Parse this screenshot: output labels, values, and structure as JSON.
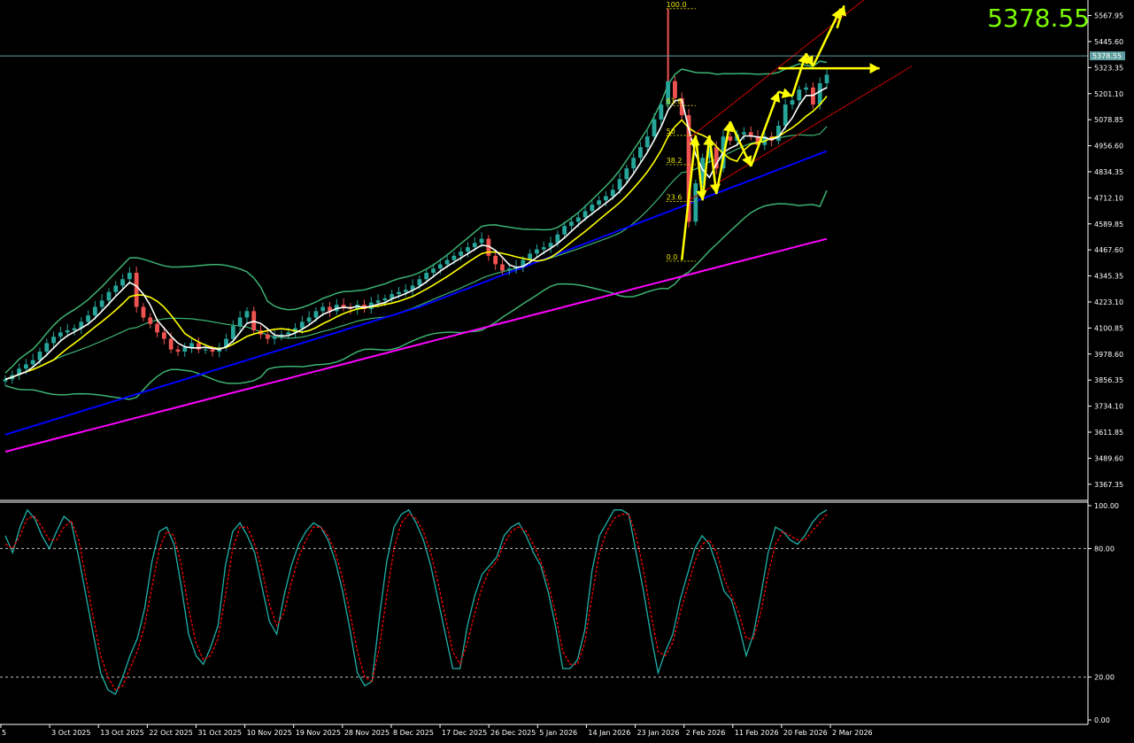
{
  "instrument": {
    "current_price": "5378.55"
  },
  "colors": {
    "background": "#000000",
    "bull": "#26a69a",
    "bear": "#ef5350",
    "bollinger": "#3cb371",
    "ma_fast": "#ffffff",
    "ma_mid": "#ffff00",
    "ma_slow": "#0000ff",
    "ma_long": "#ff00ff",
    "channel": "#cc0000",
    "arrows": "#ffff00",
    "stoch_main": "#20b2aa",
    "stoch_signal": "#ff0000",
    "price_readout": "#7CFC00"
  },
  "chart_data": [
    {
      "type": "candlestick",
      "name": "",
      "ylim": [
        3300,
        5620
      ],
      "price_axis_ticks": [
        "5567.95",
        "5445.60",
        "5323.35",
        "5201.10",
        "5078.85",
        "4956.60",
        "4834.35",
        "4712.10",
        "4589.85",
        "4467.60",
        "4345.35",
        "4223.10",
        "4100.85",
        "3978.60",
        "3856.35",
        "3734.10",
        "3611.85",
        "3489.60",
        "3367.35"
      ],
      "current_price_label": "5378.55",
      "date_labels": [
        "5",
        "3 Oct 2025",
        "13 Oct 2025",
        "22 Oct 2025",
        "31 Oct 2025",
        "10 Nov 2025",
        "19 Nov 2025",
        "28 Nov 2025",
        "8 Dec 2025",
        "17 Dec 2025",
        "26 Dec 2025",
        "5 Jan 2026",
        "14 Jan 2026",
        "23 Jan 2026",
        "2 Feb 2026",
        "11 Feb 2026",
        "20 Feb 2026",
        "2 Mar 2026"
      ],
      "close_series": [
        3860,
        3880,
        3910,
        3930,
        3950,
        3990,
        4030,
        4060,
        4080,
        4090,
        4100,
        4130,
        4160,
        4200,
        4230,
        4270,
        4300,
        4330,
        4360,
        4200,
        4150,
        4120,
        4080,
        4050,
        4000,
        3990,
        4010,
        4030,
        4000,
        4000,
        3990,
        4010,
        4050,
        4110,
        4150,
        4180,
        4090,
        4070,
        4050,
        4060,
        4070,
        4080,
        4100,
        4130,
        4150,
        4180,
        4200,
        4180,
        4210,
        4200,
        4190,
        4210,
        4190,
        4220,
        4230,
        4240,
        4260,
        4270,
        4280,
        4300,
        4330,
        4360,
        4380,
        4400,
        4420,
        4440,
        4460,
        4480,
        4500,
        4520,
        4440,
        4400,
        4370,
        4380,
        4390,
        4420,
        4450,
        4470,
        4480,
        4500,
        4540,
        4580,
        4600,
        4620,
        4650,
        4680,
        4700,
        4720,
        4750,
        4800,
        4850,
        4900,
        4950,
        5000,
        5080,
        5150,
        5260,
        5180,
        5100,
        4600,
        4780,
        4900,
        4950,
        4850,
        5000,
        4980,
        5010,
        5020,
        5000,
        4960,
        5000,
        4980,
        5050,
        5150,
        5170,
        5220,
        5230,
        5150,
        5250,
        5290
      ],
      "fibonacci": {
        "levels": [
          {
            "label": "100.0",
            "price": 5600
          },
          {
            "label": "61.8",
            "price": 5145
          },
          {
            "label": "50",
            "price": 5005
          },
          {
            "label": "38.2",
            "price": 4868
          },
          {
            "label": "23.6",
            "price": 4695
          },
          {
            "label": "0.0",
            "price": 4415
          }
        ]
      },
      "moving_averages": [
        {
          "name": "",
          "role": "ma_fast"
        },
        {
          "name": "",
          "role": "ma_mid"
        },
        {
          "name": "",
          "role": "ma_slow"
        },
        {
          "name": "",
          "role": "ma_long"
        }
      ],
      "bollinger_bands": true,
      "trend_channel": true,
      "annotations": "yellow wave arrows and horizontal target arrow"
    },
    {
      "type": "line",
      "name": "",
      "ylim": [
        0,
        100
      ],
      "axis_ticks": [
        "100.00",
        "80.00",
        "20.00",
        "0.00"
      ],
      "levels": [
        80,
        20
      ],
      "series": [
        {
          "role": "stoch_main",
          "values": [
            86,
            78,
            90,
            98,
            94,
            86,
            80,
            88,
            95,
            92,
            76,
            58,
            40,
            22,
            14,
            12,
            20,
            30,
            38,
            52,
            74,
            88,
            90,
            82,
            62,
            40,
            30,
            26,
            34,
            44,
            72,
            88,
            92,
            86,
            78,
            62,
            46,
            40,
            58,
            72,
            82,
            88,
            92,
            90,
            84,
            74,
            60,
            42,
            22,
            16,
            18,
            48,
            74,
            90,
            96,
            98,
            92,
            84,
            72,
            56,
            40,
            24,
            24,
            44,
            58,
            68,
            72,
            76,
            86,
            90,
            92,
            86,
            78,
            72,
            60,
            44,
            24,
            24,
            28,
            42,
            70,
            86,
            92,
            98,
            98,
            96,
            78,
            60,
            40,
            22,
            32,
            40,
            56,
            68,
            80,
            86,
            82,
            72,
            60,
            56,
            44,
            30,
            40,
            58,
            78,
            90,
            88,
            84,
            82,
            86,
            92,
            96,
            98
          ]
        },
        {
          "role": "stoch_signal",
          "values": [
            82,
            80,
            86,
            94,
            95,
            90,
            84,
            84,
            90,
            93,
            84,
            66,
            48,
            30,
            20,
            14,
            16,
            24,
            32,
            44,
            62,
            80,
            88,
            86,
            72,
            52,
            36,
            28,
            30,
            38,
            58,
            80,
            90,
            90,
            82,
            70,
            54,
            44,
            50,
            64,
            76,
            84,
            90,
            90,
            86,
            78,
            66,
            50,
            32,
            20,
            18,
            34,
            58,
            80,
            92,
            96,
            94,
            88,
            78,
            64,
            48,
            32,
            26,
            36,
            50,
            62,
            70,
            74,
            82,
            88,
            90,
            88,
            82,
            74,
            64,
            50,
            32,
            26,
            26,
            36,
            58,
            78,
            88,
            94,
            96,
            96,
            86,
            70,
            50,
            32,
            30,
            36,
            50,
            62,
            74,
            82,
            84,
            78,
            66,
            58,
            50,
            38,
            38,
            50,
            68,
            82,
            88,
            86,
            84,
            84,
            88,
            92,
            96
          ]
        }
      ]
    }
  ]
}
